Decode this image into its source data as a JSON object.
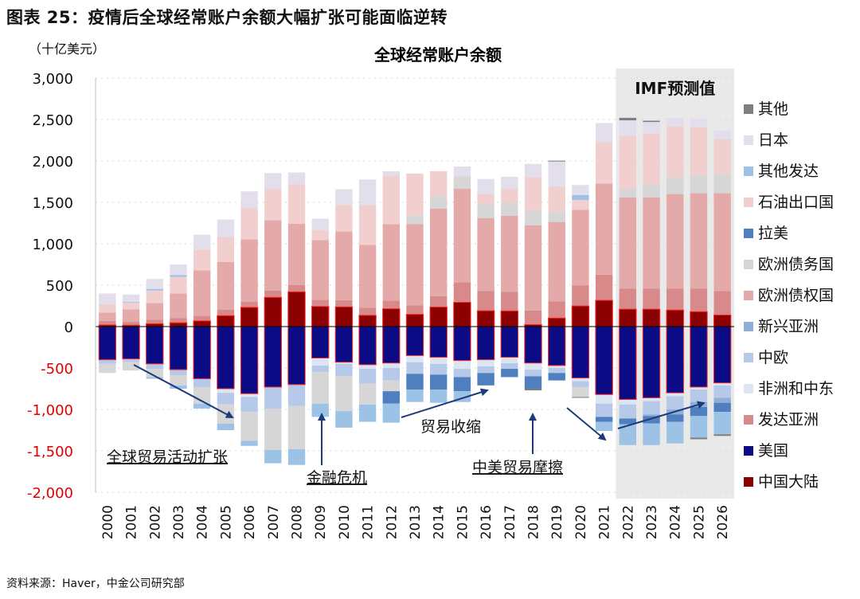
{
  "figure_title": "图表 25：疫情后全球经常账户余额大幅扩张可能面临逆转",
  "unit": "（十亿美元）",
  "source": "资料来源：Haver，中金公司研究部",
  "forecast_label": "IMF预测值",
  "annotations": [
    "全球贸易活动扩张",
    "金融危机",
    "贸易收缩",
    "中美贸易摩擦"
  ],
  "colors": {
    "其他": "#7f7f7f",
    "日本": "#e3deeb",
    "其他发达": "#9cc3e6",
    "石油出口国": "#f2cfcf",
    "拉美": "#4f7fbf",
    "欧洲债务国": "#d6d6d6",
    "欧洲债权国": "#e4a9a9",
    "新兴亚洲": "#8faed8",
    "中欧": "#b7c9e8",
    "非洲和中东": "#dce6f2",
    "发达亚洲": "#d88a8a",
    "美国": "#0b0b85",
    "中国大陆": "#8b0000",
    "forecast_bg": "#e9e9e9",
    "negative_tick": "#e00000",
    "arrow": "#1f3a7a"
  },
  "chart_data": {
    "type": "bar",
    "stacked": true,
    "title": "全球经常账户余额",
    "xlabel": "",
    "ylabel": "",
    "ylim": [
      -2000,
      3000
    ],
    "yticks": [
      "3,000",
      "2,500",
      "2,000",
      "1,500",
      "1,000",
      "500",
      "0",
      "-500",
      "-1,000",
      "-1,500",
      "-2,000"
    ],
    "grid": true,
    "legend_position": "right",
    "forecast_from": "2022",
    "categories": [
      "2000",
      "2001",
      "2002",
      "2003",
      "2004",
      "2005",
      "2006",
      "2007",
      "2008",
      "2009",
      "2010",
      "2011",
      "2012",
      "2013",
      "2014",
      "2015",
      "2016",
      "2017",
      "2018",
      "2019",
      "2020",
      "2021",
      "2022",
      "2023",
      "2024",
      "2025",
      "2026"
    ],
    "series_positive": [
      {
        "name": "中国大陆",
        "values": [
          20,
          17,
          35,
          46,
          69,
          132,
          232,
          353,
          420,
          243,
          238,
          136,
          215,
          148,
          236,
          293,
          191,
          189,
          24,
          103,
          249,
          317,
          210,
          210,
          200,
          180,
          140
        ]
      },
      {
        "name": "发达亚洲",
        "values": [
          50,
          40,
          50,
          55,
          60,
          70,
          70,
          80,
          80,
          80,
          80,
          90,
          100,
          110,
          130,
          240,
          240,
          230,
          170,
          200,
          250,
          310,
          250,
          250,
          260,
          280,
          290
        ]
      },
      {
        "name": "欧洲债权国",
        "values": [
          100,
          150,
          200,
          300,
          550,
          580,
          750,
          850,
          740,
          720,
          830,
          760,
          920,
          980,
          1060,
          1130,
          880,
          920,
          1030,
          960,
          910,
          1100,
          1100,
          1100,
          1140,
          1150,
          1180
        ]
      },
      {
        "name": "欧洲债务国",
        "values": [
          0,
          0,
          0,
          0,
          0,
          0,
          0,
          0,
          0,
          0,
          0,
          0,
          0,
          100,
          150,
          150,
          160,
          160,
          180,
          120,
          0,
          0,
          100,
          150,
          200,
          220,
          230
        ]
      },
      {
        "name": "拉美",
        "values": [
          0,
          0,
          0,
          0,
          0,
          0,
          0,
          0,
          0,
          0,
          0,
          0,
          0,
          0,
          0,
          0,
          0,
          0,
          0,
          0,
          0,
          0,
          0,
          0,
          0,
          0,
          0
        ]
      },
      {
        "name": "石油出口国",
        "values": [
          100,
          80,
          150,
          200,
          250,
          300,
          380,
          380,
          480,
          120,
          320,
          480,
          590,
          510,
          300,
          0,
          130,
          160,
          400,
          310,
          120,
          500,
          640,
          620,
          620,
          580,
          420
        ]
      },
      {
        "name": "其他发达",
        "values": [
          0,
          10,
          20,
          20,
          0,
          0,
          0,
          0,
          0,
          0,
          0,
          0,
          0,
          0,
          0,
          0,
          0,
          0,
          0,
          0,
          60,
          0,
          0,
          0,
          0,
          0,
          0
        ]
      },
      {
        "name": "日本",
        "values": [
          130,
          90,
          120,
          130,
          180,
          210,
          200,
          190,
          140,
          140,
          190,
          310,
          50,
          0,
          0,
          120,
          180,
          150,
          160,
          300,
          120,
          230,
          190,
          140,
          100,
          100,
          110
        ]
      },
      {
        "name": "其他",
        "values": [
          0,
          0,
          0,
          0,
          0,
          0,
          0,
          0,
          0,
          0,
          0,
          0,
          0,
          0,
          0,
          0,
          0,
          0,
          0,
          10,
          0,
          0,
          30,
          15,
          0,
          0,
          0
        ]
      }
    ],
    "series_negative": [
      {
        "name": "美国",
        "values": [
          -400,
          -390,
          -450,
          -520,
          -630,
          -750,
          -810,
          -730,
          -700,
          -380,
          -430,
          -460,
          -440,
          -350,
          -370,
          -410,
          -400,
          -370,
          -440,
          -470,
          -620,
          -820,
          -880,
          -860,
          -800,
          -730,
          -680
        ]
      },
      {
        "name": "非洲和中东",
        "values": [
          0,
          0,
          0,
          0,
          0,
          -50,
          -40,
          0,
          0,
          -90,
          -20,
          -50,
          -60,
          -80,
          -80,
          -100,
          -80,
          -70,
          -80,
          -30,
          -40,
          -110,
          -60,
          -40,
          -40,
          -30,
          -30
        ]
      },
      {
        "name": "中欧",
        "values": [
          -50,
          -40,
          -60,
          -70,
          -100,
          -140,
          -180,
          -260,
          -260,
          -80,
          -150,
          -180,
          -150,
          -140,
          -130,
          -100,
          -80,
          -70,
          -80,
          -60,
          -70,
          -160,
          -170,
          -160,
          -160,
          -150,
          -150
        ]
      },
      {
        "name": "新兴亚洲",
        "values": [
          0,
          0,
          0,
          0,
          0,
          0,
          0,
          0,
          0,
          0,
          0,
          0,
          0,
          0,
          0,
          0,
          0,
          0,
          0,
          0,
          0,
          0,
          0,
          -20,
          -60,
          -60,
          -60
        ]
      },
      {
        "name": "欧洲债务国",
        "values": [
          -110,
          -100,
          -100,
          -120,
          -200,
          -230,
          -350,
          -500,
          -520,
          -380,
          -420,
          -250,
          -130,
          0,
          0,
          0,
          0,
          0,
          0,
          0,
          -120,
          0,
          0,
          0,
          0,
          0,
          0
        ]
      },
      {
        "name": "拉美",
        "values": [
          0,
          0,
          0,
          0,
          0,
          0,
          0,
          0,
          0,
          0,
          0,
          0,
          -150,
          -190,
          -180,
          -170,
          -150,
          -100,
          -150,
          -90,
          0,
          -60,
          -70,
          -90,
          -90,
          -110,
          -110
        ]
      },
      {
        "name": "其他发达",
        "values": [
          0,
          0,
          -20,
          -40,
          -60,
          -80,
          -60,
          -160,
          -190,
          -160,
          -200,
          -210,
          -230,
          -150,
          -160,
          -130,
          0,
          0,
          0,
          0,
          0,
          -110,
          -250,
          -260,
          -260,
          -260,
          -270
        ]
      },
      {
        "name": "其他",
        "values": [
          0,
          0,
          0,
          0,
          0,
          0,
          0,
          0,
          0,
          0,
          0,
          0,
          0,
          0,
          0,
          0,
          0,
          0,
          -20,
          0,
          -10,
          0,
          0,
          0,
          0,
          -20,
          -20
        ]
      }
    ],
    "legend": [
      "其他",
      "日本",
      "其他发达",
      "石油出口国",
      "拉美",
      "欧洲债务国",
      "欧洲债权国",
      "新兴亚洲",
      "中欧",
      "非洲和中东",
      "发达亚洲",
      "美国",
      "中国大陆"
    ]
  }
}
